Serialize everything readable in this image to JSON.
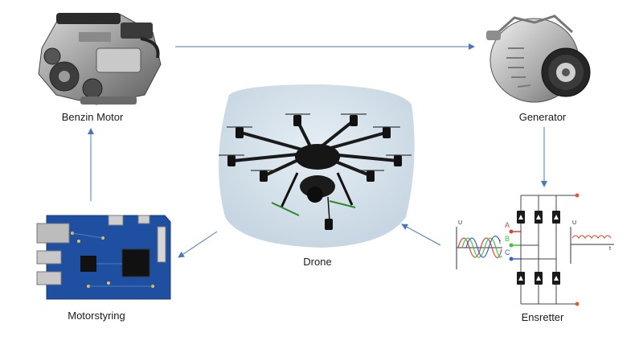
{
  "nodes": {
    "motor": {
      "label": "Benzin Motor"
    },
    "generator": {
      "label": "Generator"
    },
    "drone": {
      "label": "Drone"
    },
    "rectifier": {
      "label": "Ensretter",
      "phase_labels": [
        "A",
        "B",
        "C"
      ],
      "input_axis": {
        "y": "U",
        "x": "t"
      },
      "output_axis": {
        "y": "U",
        "x": "t"
      }
    },
    "controller": {
      "label": "Motorstyring"
    }
  },
  "flow": [
    [
      "motor",
      "generator"
    ],
    [
      "generator",
      "rectifier"
    ],
    [
      "rectifier",
      "drone"
    ],
    [
      "drone",
      "controller"
    ],
    [
      "controller",
      "motor"
    ]
  ],
  "colors": {
    "arrow": "#4a78b8",
    "phase_a": "#e0403a",
    "phase_b": "#3cc83c",
    "phase_c": "#3a5ee0",
    "output_wave": "#e05a3a",
    "board": "#1f4fa0"
  },
  "icons": {
    "motor": "engine-icon",
    "generator": "alternator-icon",
    "drone": "octocopter-photo",
    "rectifier": "rectifier-circuit",
    "controller": "circuit-board-icon"
  }
}
